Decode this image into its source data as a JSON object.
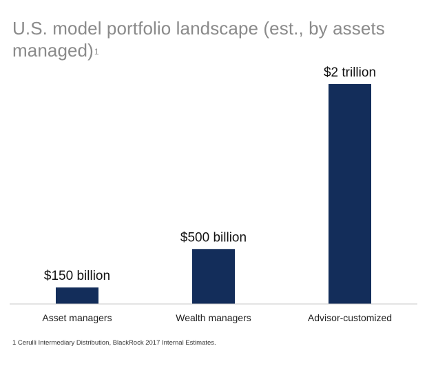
{
  "title": {
    "text": "U.S. model portfolio landscape (est., by assets managed)",
    "superscript": "1"
  },
  "footnote": "1 Cerulli Intermediary Distribution, BlackRock 2017 Internal Estimates.",
  "colors": {
    "bar": "#132d5a",
    "baseline": "#c8c8c8",
    "title": "#8a8a8a"
  },
  "chart_data": {
    "type": "bar",
    "title": "U.S. model portfolio landscape (est., by assets managed)",
    "xlabel": "",
    "ylabel": "",
    "unit": "USD",
    "categories": [
      "Asset managers",
      "Wealth managers",
      "Advisor-customized"
    ],
    "values": [
      150000000000,
      500000000000,
      2000000000000
    ],
    "data_labels": [
      "$150 billion",
      "$500 billion",
      "$2 trillion"
    ],
    "ylim": [
      0,
      2000000000000
    ],
    "grid": false,
    "legend": "none"
  }
}
